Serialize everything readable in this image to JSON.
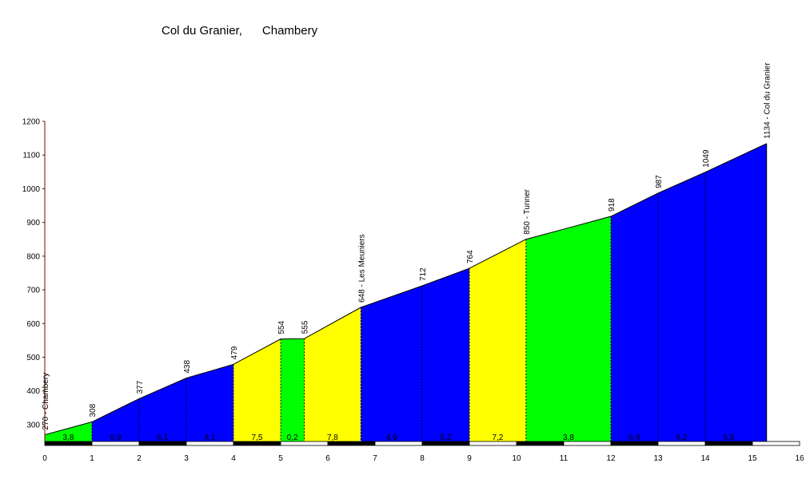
{
  "chart_data": {
    "type": "area",
    "title": "Col du Granier,      Chambery",
    "xlabel": "",
    "ylabel": "",
    "xlim": [
      0,
      16
    ],
    "ylim": [
      250,
      1200
    ],
    "x_ticks": [
      "0",
      "1",
      "2",
      "3",
      "4",
      "5",
      "6",
      "7",
      "8",
      "9",
      "10",
      "11",
      "12",
      "13",
      "14",
      "15",
      "16"
    ],
    "y_ticks": [
      "300",
      "400",
      "500",
      "600",
      "700",
      "800",
      "900",
      "1000",
      "1100",
      "1200"
    ],
    "points": [
      {
        "x": 0,
        "y": 270,
        "label": "270 - Chambery"
      },
      {
        "x": 1,
        "y": 308,
        "label": "308"
      },
      {
        "x": 2,
        "y": 377,
        "label": "377"
      },
      {
        "x": 3,
        "y": 438,
        "label": "438"
      },
      {
        "x": 4,
        "y": 479,
        "label": "479"
      },
      {
        "x": 5,
        "y": 554,
        "label": "554"
      },
      {
        "x": 5.5,
        "y": 555,
        "label": "555"
      },
      {
        "x": 6.7,
        "y": 648,
        "label": "648 - Les Meuniers"
      },
      {
        "x": 8,
        "y": 712,
        "label": "712"
      },
      {
        "x": 9,
        "y": 764,
        "label": "764"
      },
      {
        "x": 10.2,
        "y": 850,
        "label": "850 - Tunner"
      },
      {
        "x": 11.0,
        "y": 880,
        "label": ""
      },
      {
        "x": 12,
        "y": 918,
        "label": "918"
      },
      {
        "x": 13,
        "y": 987,
        "label": "987"
      },
      {
        "x": 14,
        "y": 1049,
        "label": "1049"
      },
      {
        "x": 15.3,
        "y": 1134,
        "label": "1134 - Col du Granier"
      }
    ],
    "segments": [
      {
        "start": 0,
        "end": 1,
        "color": "#00ff00",
        "gradient": "3,8"
      },
      {
        "start": 1,
        "end": 3,
        "color": "#0000ff",
        "gradient": "6,9"
      },
      {
        "start": 3,
        "end": 4,
        "color": "#0000ff",
        "gradient": "4,1"
      },
      {
        "start": 4,
        "end": 5,
        "color": "#ffff00",
        "gradient": "7,5"
      },
      {
        "start": 5,
        "end": 5.5,
        "color": "#00ff00",
        "gradient": "0,2"
      },
      {
        "start": 5.5,
        "end": 6.7,
        "color": "#ffff00",
        "gradient": "7,8"
      },
      {
        "start": 6.7,
        "end": 9,
        "color": "#0000ff",
        "gradient": "4,9"
      },
      {
        "start": 9,
        "end": 10.2,
        "color": "#ffff00",
        "gradient": "7,2"
      },
      {
        "start": 10.2,
        "end": 12,
        "color": "#00ff00",
        "gradient": "3,8"
      },
      {
        "start": 12,
        "end": 15.3,
        "color": "#0000ff",
        "gradient": "6,5"
      }
    ],
    "gradient_labels": [
      {
        "x": 0.5,
        "text": "3,8"
      },
      {
        "x": 1.5,
        "text": "6,9"
      },
      {
        "x": 2.5,
        "text": "6,1"
      },
      {
        "x": 3.5,
        "text": "4,1"
      },
      {
        "x": 4.5,
        "text": "7,5"
      },
      {
        "x": 5.25,
        "text": "0,2"
      },
      {
        "x": 6.1,
        "text": "7,8"
      },
      {
        "x": 7.35,
        "text": "4,9"
      },
      {
        "x": 8.5,
        "text": "5,2"
      },
      {
        "x": 9.6,
        "text": "7,2"
      },
      {
        "x": 11.1,
        "text": "3,8"
      },
      {
        "x": 12.5,
        "text": "6,9"
      },
      {
        "x": 13.5,
        "text": "6,2"
      },
      {
        "x": 14.5,
        "text": "6,5"
      }
    ],
    "dashed_markers": [
      1,
      2,
      3,
      4,
      5,
      5.5,
      6.7,
      8,
      9,
      10.2,
      12,
      13,
      14
    ]
  }
}
